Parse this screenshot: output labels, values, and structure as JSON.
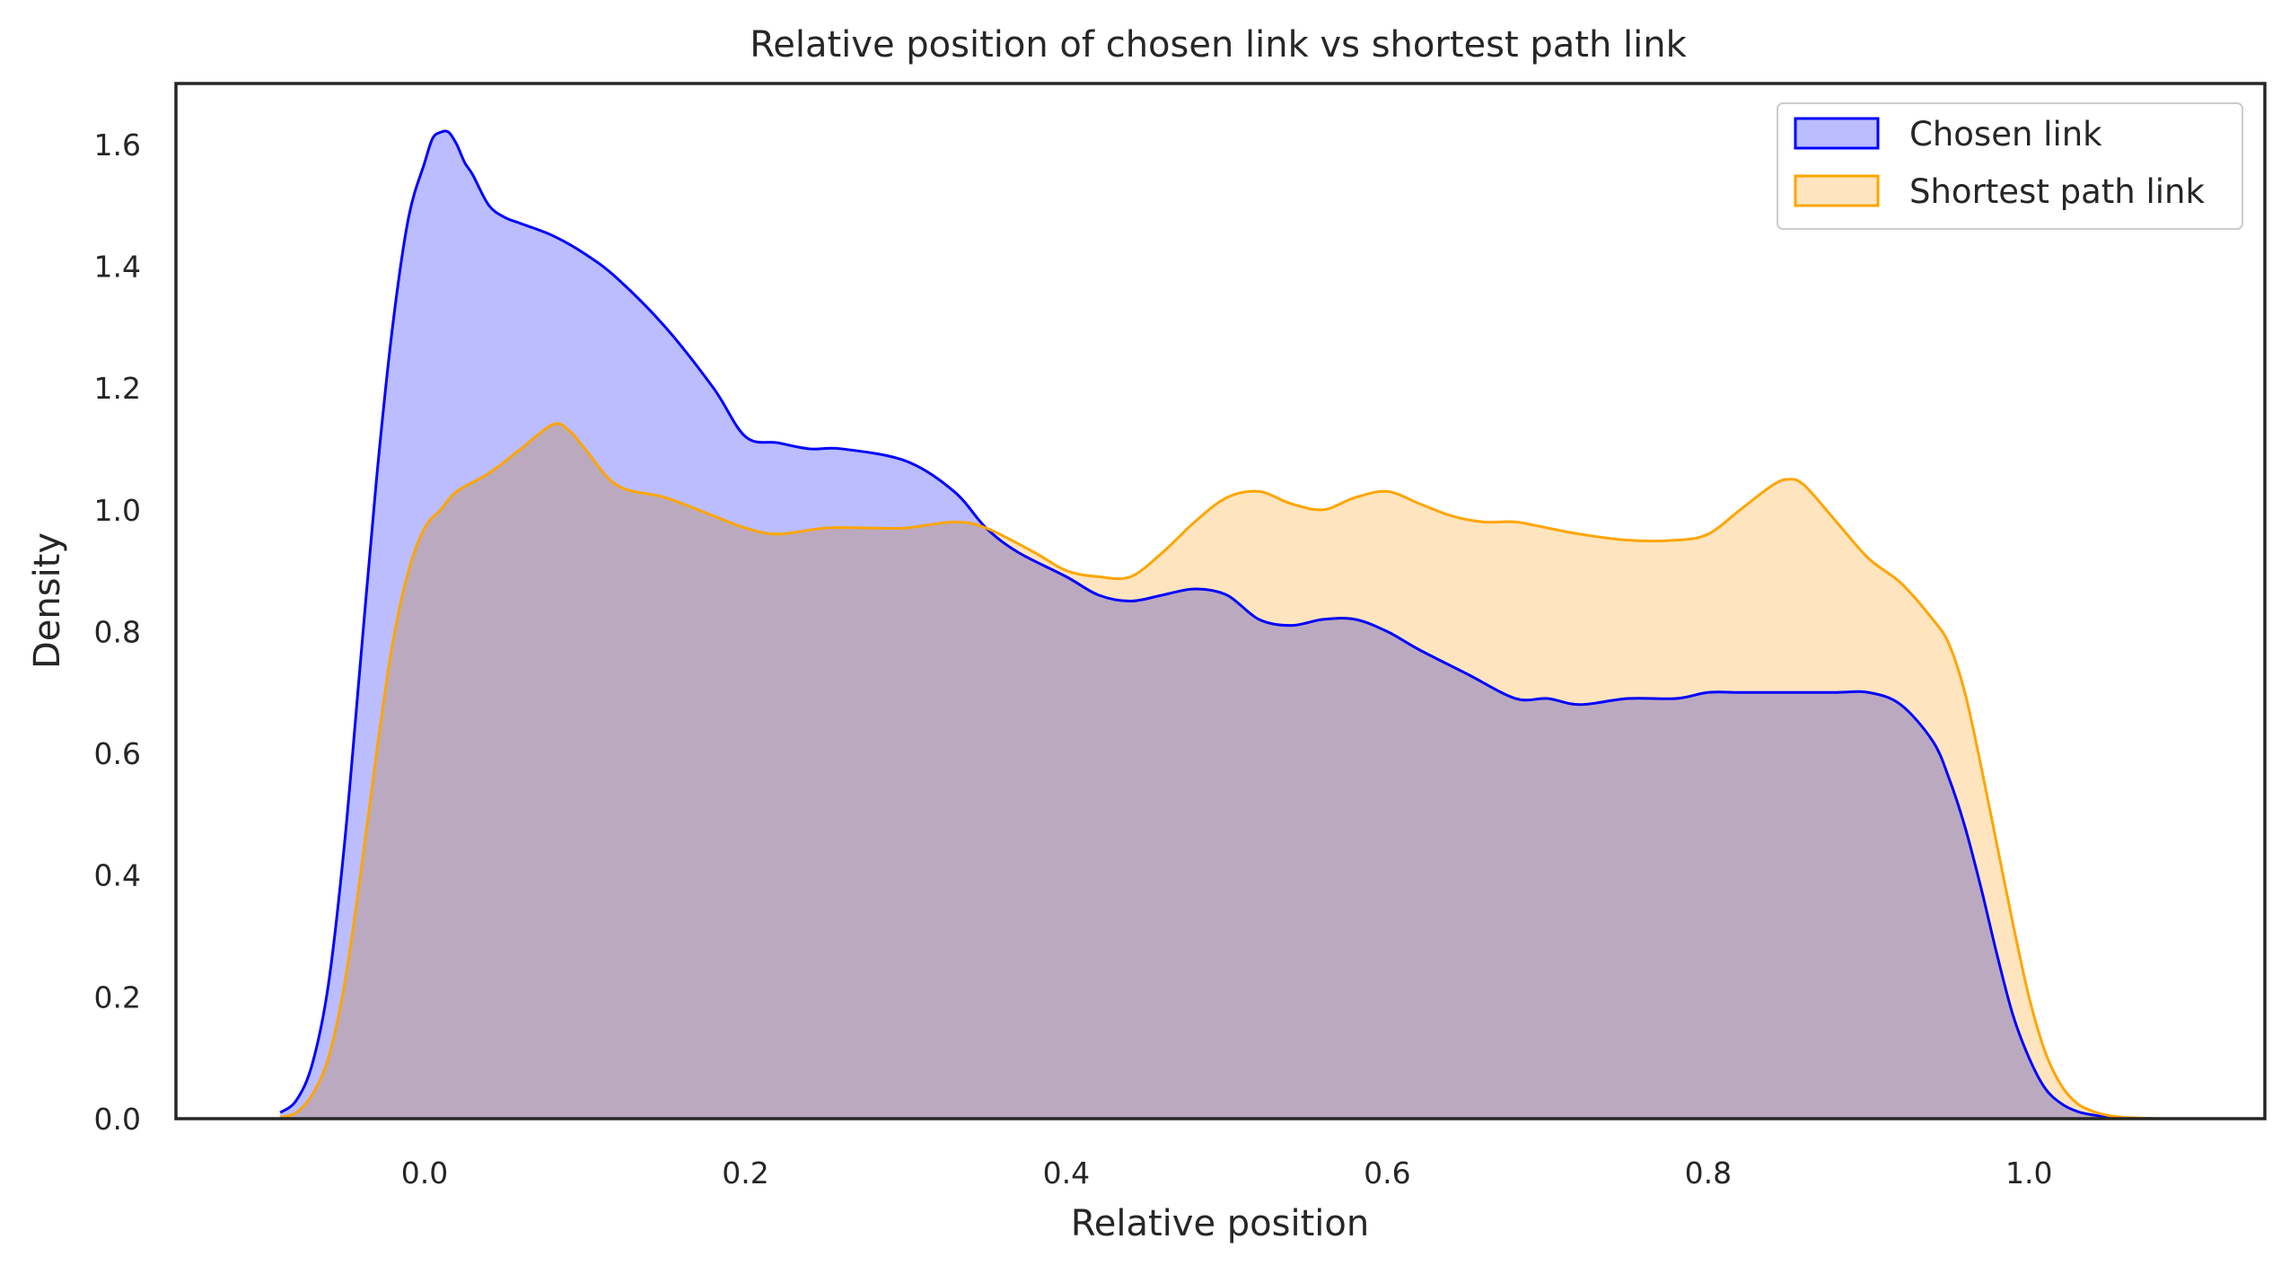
{
  "chart_data": {
    "type": "area",
    "title": "Relative position of chosen link vs shortest path link",
    "xlabel": "Relative position",
    "ylabel": "Density",
    "xlim": [
      -0.155,
      1.147
    ],
    "ylim": [
      0,
      1.7
    ],
    "xticks": [
      "0.0",
      "0.2",
      "0.4",
      "0.6",
      "0.8",
      "1.0"
    ],
    "xtick_values": [
      0.0,
      0.2,
      0.4,
      0.6,
      0.8,
      1.0
    ],
    "yticks": [
      "0.0",
      "0.2",
      "0.4",
      "0.6",
      "0.8",
      "1.0",
      "1.2",
      "1.4",
      "1.6"
    ],
    "ytick_values": [
      0.0,
      0.2,
      0.4,
      0.6,
      0.8,
      1.0,
      1.2,
      1.4,
      1.6
    ],
    "grid": false,
    "legend_position": "top-right",
    "series": [
      {
        "name": "Chosen link",
        "line_color": "#0000ff",
        "fill_color": "#bbbdff",
        "fill_opacity": 1,
        "x": [
          -0.09,
          -0.08,
          -0.07,
          -0.06,
          -0.05,
          -0.04,
          -0.03,
          -0.02,
          -0.01,
          0.0,
          0.005,
          0.01,
          0.015,
          0.02,
          0.025,
          0.03,
          0.04,
          0.05,
          0.06,
          0.08,
          0.1,
          0.12,
          0.15,
          0.18,
          0.2,
          0.22,
          0.24,
          0.26,
          0.3,
          0.33,
          0.35,
          0.37,
          0.4,
          0.42,
          0.44,
          0.46,
          0.48,
          0.5,
          0.52,
          0.54,
          0.56,
          0.58,
          0.6,
          0.62,
          0.65,
          0.68,
          0.7,
          0.72,
          0.75,
          0.78,
          0.8,
          0.82,
          0.85,
          0.88,
          0.9,
          0.92,
          0.94,
          0.95,
          0.96,
          0.97,
          0.98,
          0.99,
          1.0,
          1.01,
          1.02,
          1.03,
          1.04,
          1.05,
          1.06,
          1.07,
          1.08
        ],
        "y": [
          0.01,
          0.03,
          0.09,
          0.22,
          0.45,
          0.75,
          1.05,
          1.3,
          1.48,
          1.57,
          1.61,
          1.62,
          1.62,
          1.6,
          1.57,
          1.55,
          1.5,
          1.48,
          1.47,
          1.45,
          1.42,
          1.38,
          1.3,
          1.2,
          1.12,
          1.11,
          1.1,
          1.1,
          1.08,
          1.03,
          0.97,
          0.93,
          0.89,
          0.86,
          0.85,
          0.86,
          0.87,
          0.86,
          0.82,
          0.81,
          0.82,
          0.82,
          0.8,
          0.77,
          0.73,
          0.69,
          0.69,
          0.68,
          0.69,
          0.69,
          0.7,
          0.7,
          0.7,
          0.7,
          0.7,
          0.68,
          0.62,
          0.56,
          0.48,
          0.38,
          0.27,
          0.17,
          0.1,
          0.05,
          0.025,
          0.012,
          0.006,
          0.003,
          0.001,
          0.0005,
          0.0
        ],
        "y_end": [
          0.01,
          0.03,
          0.09,
          0.22,
          0.45,
          0.75,
          1.05,
          1.3,
          1.48,
          1.57,
          1.61,
          1.62,
          1.62,
          1.6,
          1.57,
          1.55,
          1.5,
          1.48,
          1.47,
          1.45,
          1.42,
          1.38,
          1.3,
          1.2,
          1.12,
          1.11,
          1.1,
          1.1,
          1.08,
          1.03,
          0.97,
          0.93,
          0.89,
          0.86,
          0.85,
          0.86,
          0.87,
          0.86,
          0.82,
          0.81,
          0.82,
          0.82,
          0.8,
          0.77,
          0.73,
          0.69,
          0.69,
          0.68,
          0.69,
          0.69,
          0.7,
          0.7,
          0.7,
          0.7,
          0.7,
          0.68,
          0.62,
          0.56,
          0.48,
          0.38,
          0.27,
          0.17,
          0.1,
          0.05,
          0.025,
          0.012,
          0.006,
          0.003,
          0.001,
          0.0005,
          0.0
        ]
      },
      {
        "name": "Shortest path link",
        "line_color": "#ffa500",
        "fill_color": "#ffe5bf",
        "fill_opacity": 1,
        "x": [
          -0.09,
          -0.08,
          -0.07,
          -0.06,
          -0.05,
          -0.04,
          -0.03,
          -0.02,
          -0.01,
          0.0,
          0.01,
          0.02,
          0.04,
          0.06,
          0.08,
          0.09,
          0.1,
          0.12,
          0.15,
          0.18,
          0.2,
          0.22,
          0.25,
          0.28,
          0.3,
          0.33,
          0.35,
          0.38,
          0.4,
          0.42,
          0.44,
          0.46,
          0.48,
          0.5,
          0.52,
          0.54,
          0.56,
          0.58,
          0.6,
          0.62,
          0.64,
          0.66,
          0.68,
          0.7,
          0.72,
          0.75,
          0.78,
          0.8,
          0.82,
          0.84,
          0.85,
          0.86,
          0.88,
          0.9,
          0.92,
          0.94,
          0.95,
          0.96,
          0.97,
          0.98,
          0.99,
          1.0,
          1.01,
          1.02,
          1.03,
          1.04,
          1.05,
          1.06,
          1.07,
          1.08
        ],
        "y": [
          0.002,
          0.01,
          0.04,
          0.1,
          0.22,
          0.4,
          0.6,
          0.78,
          0.9,
          0.97,
          1.0,
          1.03,
          1.06,
          1.1,
          1.14,
          1.13,
          1.1,
          1.04,
          1.02,
          0.99,
          0.97,
          0.96,
          0.97,
          0.97,
          0.97,
          0.98,
          0.97,
          0.93,
          0.9,
          0.89,
          0.89,
          0.93,
          0.98,
          1.02,
          1.03,
          1.01,
          1.0,
          1.02,
          1.03,
          1.01,
          0.99,
          0.98,
          0.98,
          0.97,
          0.96,
          0.95,
          0.95,
          0.96,
          1.0,
          1.04,
          1.05,
          1.04,
          0.98,
          0.92,
          0.88,
          0.82,
          0.78,
          0.7,
          0.58,
          0.45,
          0.32,
          0.2,
          0.11,
          0.055,
          0.025,
          0.012,
          0.005,
          0.002,
          0.001,
          0.0
        ]
      }
    ]
  }
}
